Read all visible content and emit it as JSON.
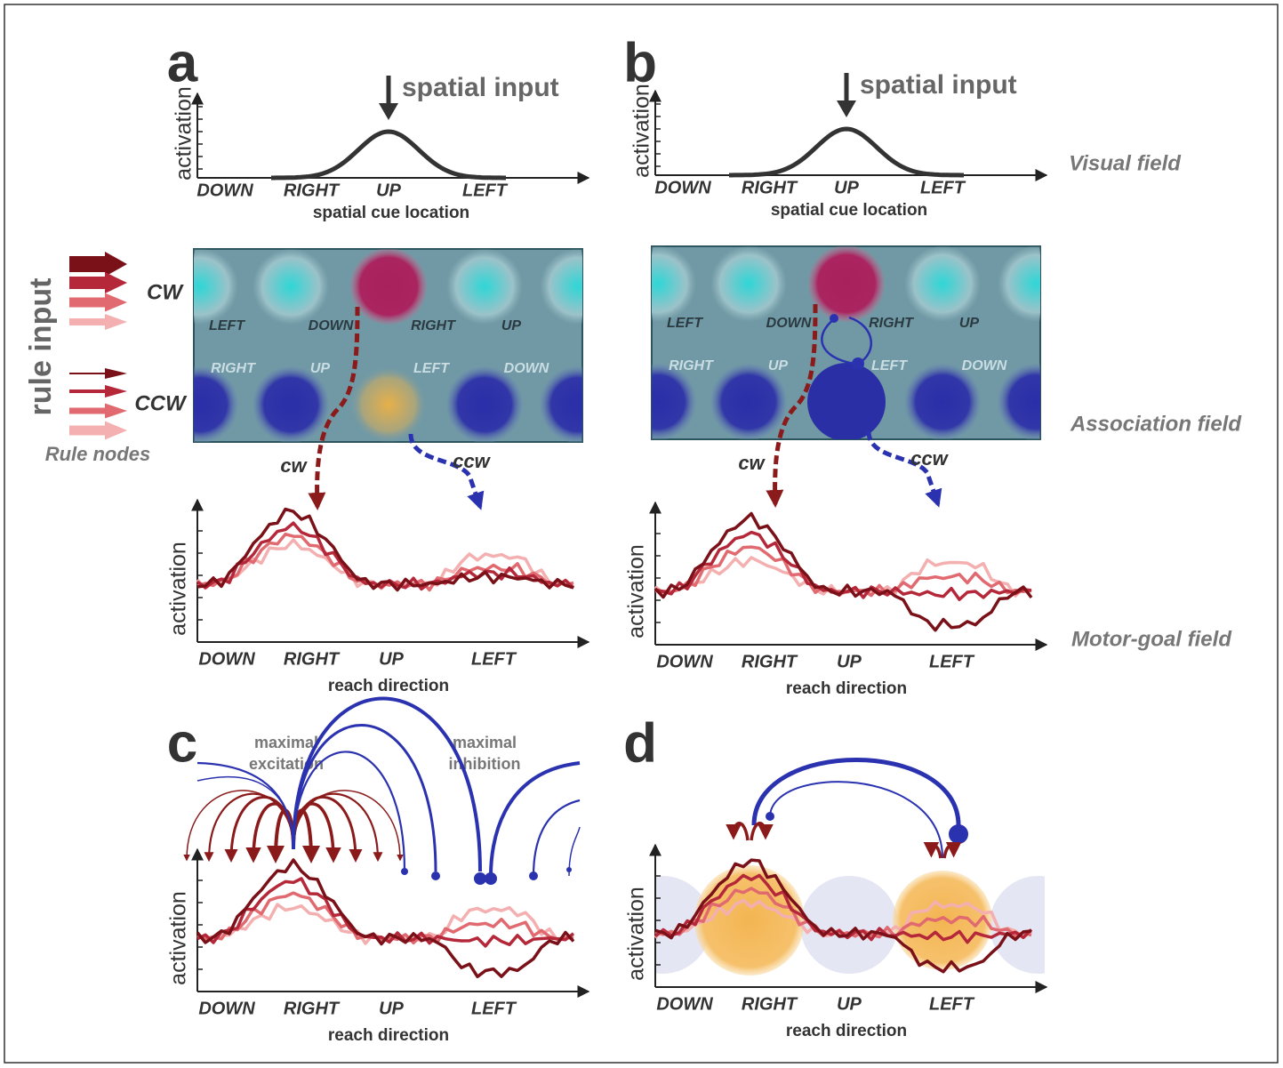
{
  "panel_labels": [
    "a",
    "b",
    "c",
    "d"
  ],
  "field_labels": [
    "Visual field",
    "Association field",
    "Motor-goal field"
  ],
  "rule_input": {
    "title": "rule input",
    "nodes": [
      "CW",
      "CCW"
    ],
    "caption": "Rule nodes"
  },
  "panel_a": {
    "visual": {
      "annotation": "spatial input",
      "y_label": "activation",
      "x_labels": [
        "DOWN",
        "RIGHT",
        "UP",
        "LEFT"
      ],
      "x_title": "spatial cue location"
    },
    "association": {
      "row_top": [
        "LEFT",
        "DOWN",
        "RIGHT",
        "UP"
      ],
      "row_bottom": [
        "RIGHT",
        "UP",
        "LEFT",
        "DOWN"
      ],
      "projections": [
        "cw",
        "ccw"
      ]
    },
    "motor": {
      "y_label": "activation",
      "x_labels": [
        "DOWN",
        "RIGHT",
        "UP",
        "LEFT"
      ],
      "x_title": "reach direction"
    }
  },
  "panel_b": {
    "visual": {
      "annotation": "spatial input",
      "y_label": "activation",
      "x_labels": [
        "DOWN",
        "RIGHT",
        "UP",
        "LEFT"
      ],
      "x_title": "spatial cue location"
    },
    "association": {
      "row_top": [
        "LEFT",
        "DOWN",
        "RIGHT",
        "UP"
      ],
      "row_bottom": [
        "RIGHT",
        "UP",
        "LEFT",
        "DOWN"
      ],
      "projections": [
        "cw",
        "ccw"
      ]
    },
    "motor": {
      "y_label": "activation",
      "x_labels": [
        "DOWN",
        "RIGHT",
        "UP",
        "LEFT"
      ],
      "x_title": "reach direction"
    }
  },
  "panel_c": {
    "annotations": [
      [
        "maximal",
        "excitation"
      ],
      [
        "maximal",
        "inhibition"
      ]
    ],
    "motor": {
      "y_label": "activation",
      "x_labels": [
        "DOWN",
        "RIGHT",
        "UP",
        "LEFT"
      ],
      "x_title": "reach direction"
    }
  },
  "panel_d": {
    "motor": {
      "y_label": "activation",
      "x_labels": [
        "DOWN",
        "RIGHT",
        "UP",
        "LEFT"
      ],
      "x_title": "reach direction"
    }
  }
}
